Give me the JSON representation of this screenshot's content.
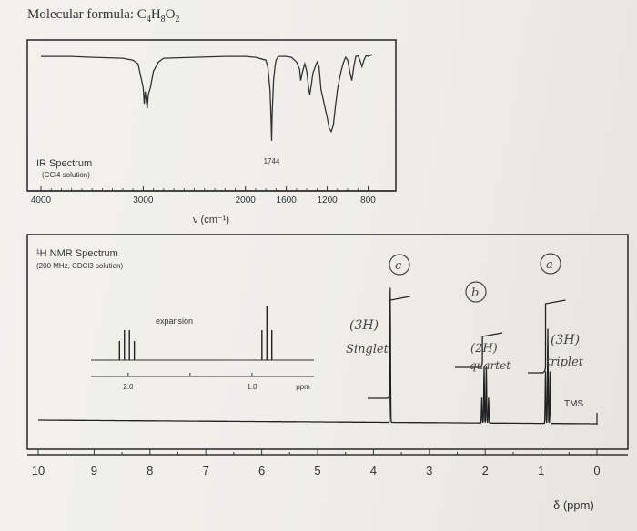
{
  "header": {
    "formula_prefix": "Molecular formula: ",
    "formula": "C4H8O2"
  },
  "chart_data": [
    {
      "type": "line",
      "title": "IR Spectrum",
      "subtitle": "(CCl4 solution)",
      "xlabel": "ν (cm⁻¹)",
      "x_ticks": [
        "4000",
        "3000",
        "2000",
        "1600",
        "1200",
        "800"
      ],
      "xlim": [
        4000,
        600
      ],
      "annotations": [
        {
          "x": 1744,
          "label": "1744"
        }
      ],
      "series": [
        {
          "x": [
            4000,
            3700,
            3500,
            3200,
            3100,
            3050,
            3000,
            2990,
            2980,
            2960,
            2950,
            2930,
            2900,
            2850,
            2800,
            2500,
            2200,
            2000,
            1900,
            1800,
            1780,
            1760,
            1750,
            1744,
            1738,
            1725,
            1710,
            1700,
            1680,
            1600,
            1550,
            1500,
            1470,
            1460,
            1440,
            1420,
            1400,
            1380,
            1370,
            1355,
            1340,
            1300,
            1280,
            1260,
            1240,
            1220,
            1200,
            1180,
            1160,
            1140,
            1120,
            1100,
            1080,
            1060,
            1040,
            1020,
            1000,
            980,
            960,
            940,
            920,
            900,
            880,
            860,
            840,
            820,
            800,
            780,
            760
          ],
          "y": [
            96,
            96,
            95,
            94,
            92,
            88,
            62,
            45,
            58,
            40,
            55,
            62,
            80,
            90,
            94,
            95,
            96,
            96,
            95,
            92,
            84,
            60,
            30,
            5,
            35,
            70,
            86,
            92,
            96,
            96,
            95,
            90,
            82,
            70,
            80,
            88,
            80,
            60,
            55,
            66,
            78,
            90,
            85,
            60,
            50,
            40,
            30,
            18,
            15,
            22,
            42,
            60,
            72,
            82,
            90,
            95,
            92,
            80,
            70,
            85,
            96,
            97,
            92,
            85,
            92,
            97,
            96,
            97,
            98
          ]
        }
      ]
    },
    {
      "type": "line",
      "title": "¹H NMR Spectrum",
      "subtitle": "(200 MHz, CDCl3 solution)",
      "xlabel": "δ (ppm)",
      "x_ticks": [
        "10",
        "9",
        "8",
        "7",
        "6",
        "5",
        "4",
        "3",
        "2",
        "1",
        "0"
      ],
      "xlim": [
        10,
        0
      ],
      "inset": {
        "label": "expansion",
        "x_ticks": [
          "2.0",
          "1.0",
          "ppm"
        ],
        "xlim": [
          2.3,
          0.5
        ],
        "peaks": [
          2.07,
          2.03,
          1.99,
          1.95,
          0.92,
          0.88,
          0.84
        ],
        "heights": [
          0.35,
          0.55,
          0.55,
          0.35,
          0.55,
          1.0,
          0.55
        ]
      },
      "peaks": [
        {
          "shift": 3.7,
          "multiplicity": "singlet",
          "integration": 3,
          "label": "c",
          "note": "(3H)",
          "word": "Singlet"
        },
        {
          "shift": 2.0,
          "multiplicity": "quartet",
          "integration": 2,
          "label": "b",
          "note": "(2H)",
          "word": "quartet"
        },
        {
          "shift": 0.88,
          "multiplicity": "triplet",
          "integration": 3,
          "label": "a",
          "note": "(3H)",
          "word": "triplet"
        }
      ],
      "reference_label": "TMS"
    }
  ]
}
